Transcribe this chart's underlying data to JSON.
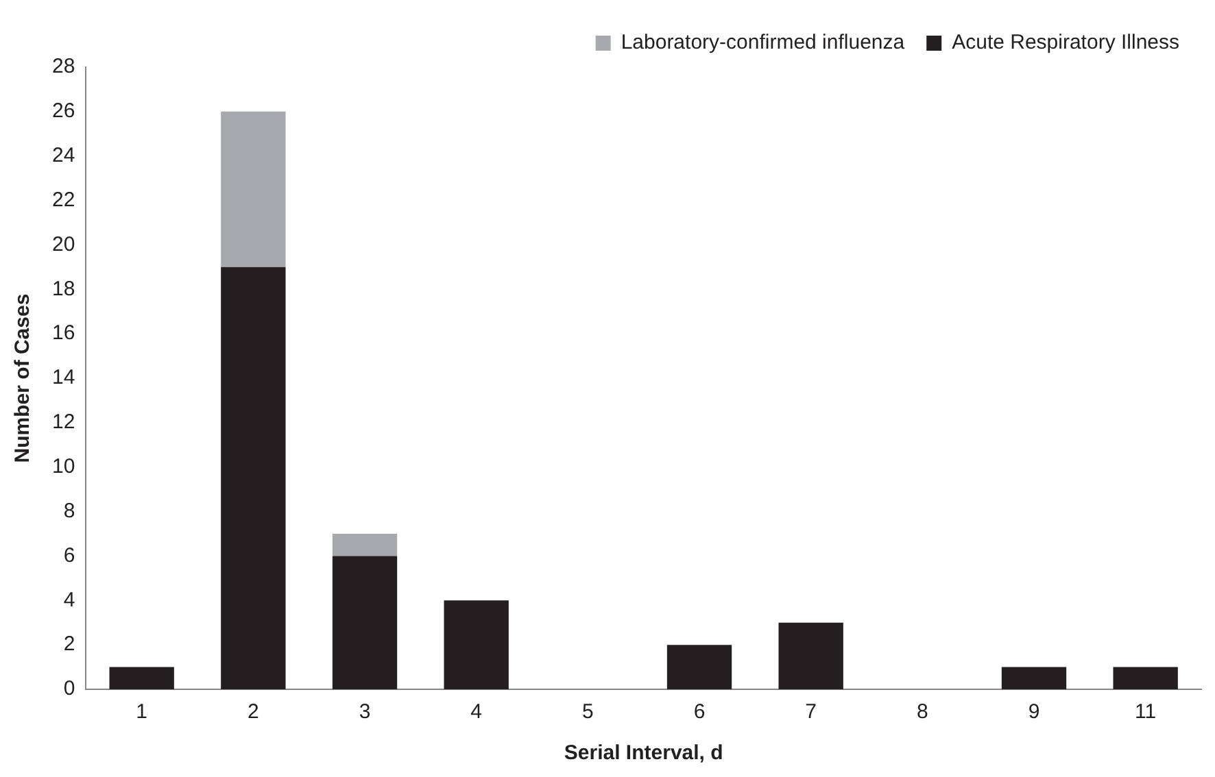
{
  "chart_data": {
    "type": "bar",
    "stacked": true,
    "xlabel": "Serial Interval, d",
    "ylabel": "Number of Cases",
    "categories": [
      "1",
      "2",
      "3",
      "4",
      "5",
      "6",
      "7",
      "8",
      "9",
      "11"
    ],
    "series": [
      {
        "name": "Acute Respiratory Illness",
        "color": "#231f20",
        "values": [
          1,
          19,
          6,
          4,
          0,
          2,
          3,
          0,
          1,
          1
        ]
      },
      {
        "name": "Laboratory-confirmed influenza",
        "color": "#a7a9ac",
        "values": [
          0,
          7,
          1,
          0,
          0,
          0,
          0,
          0,
          0,
          0
        ]
      }
    ],
    "ylim": [
      0,
      28
    ],
    "yticks": [
      0,
      2,
      4,
      6,
      8,
      10,
      12,
      14,
      16,
      18,
      20,
      22,
      24,
      26,
      28
    ],
    "grid": false,
    "legend": "top right"
  }
}
